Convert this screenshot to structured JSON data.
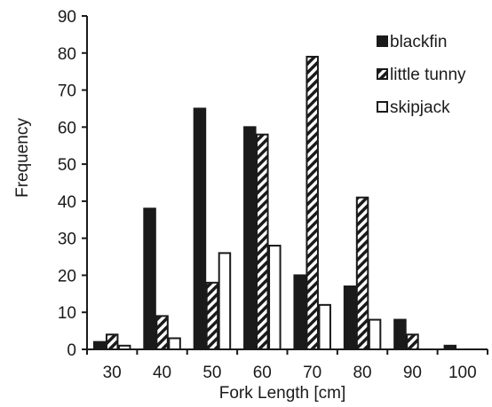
{
  "chart_data": {
    "type": "bar",
    "xlabel": "Fork Length [cm]",
    "ylabel": "Frequency",
    "categories": [
      "30",
      "40",
      "50",
      "60",
      "70",
      "80",
      "90",
      "100"
    ],
    "ylim": [
      0,
      90
    ],
    "yticks": [
      0,
      10,
      20,
      30,
      40,
      50,
      60,
      70,
      80,
      90
    ],
    "grid": false,
    "legend_position": "top-right",
    "series": [
      {
        "name": "blackfin",
        "style": "solid",
        "color": "#1a1a1a",
        "values": [
          2,
          38,
          65,
          60,
          20,
          17,
          8,
          1
        ]
      },
      {
        "name": "little tunny",
        "style": "diagonal-hatch",
        "color": "#1a1a1a",
        "values": [
          4,
          9,
          18,
          58,
          79,
          41,
          4,
          0
        ]
      },
      {
        "name": "skipjack",
        "style": "open",
        "color": "#1a1a1a",
        "values": [
          1,
          3,
          26,
          28,
          12,
          8,
          0,
          0
        ]
      }
    ]
  }
}
